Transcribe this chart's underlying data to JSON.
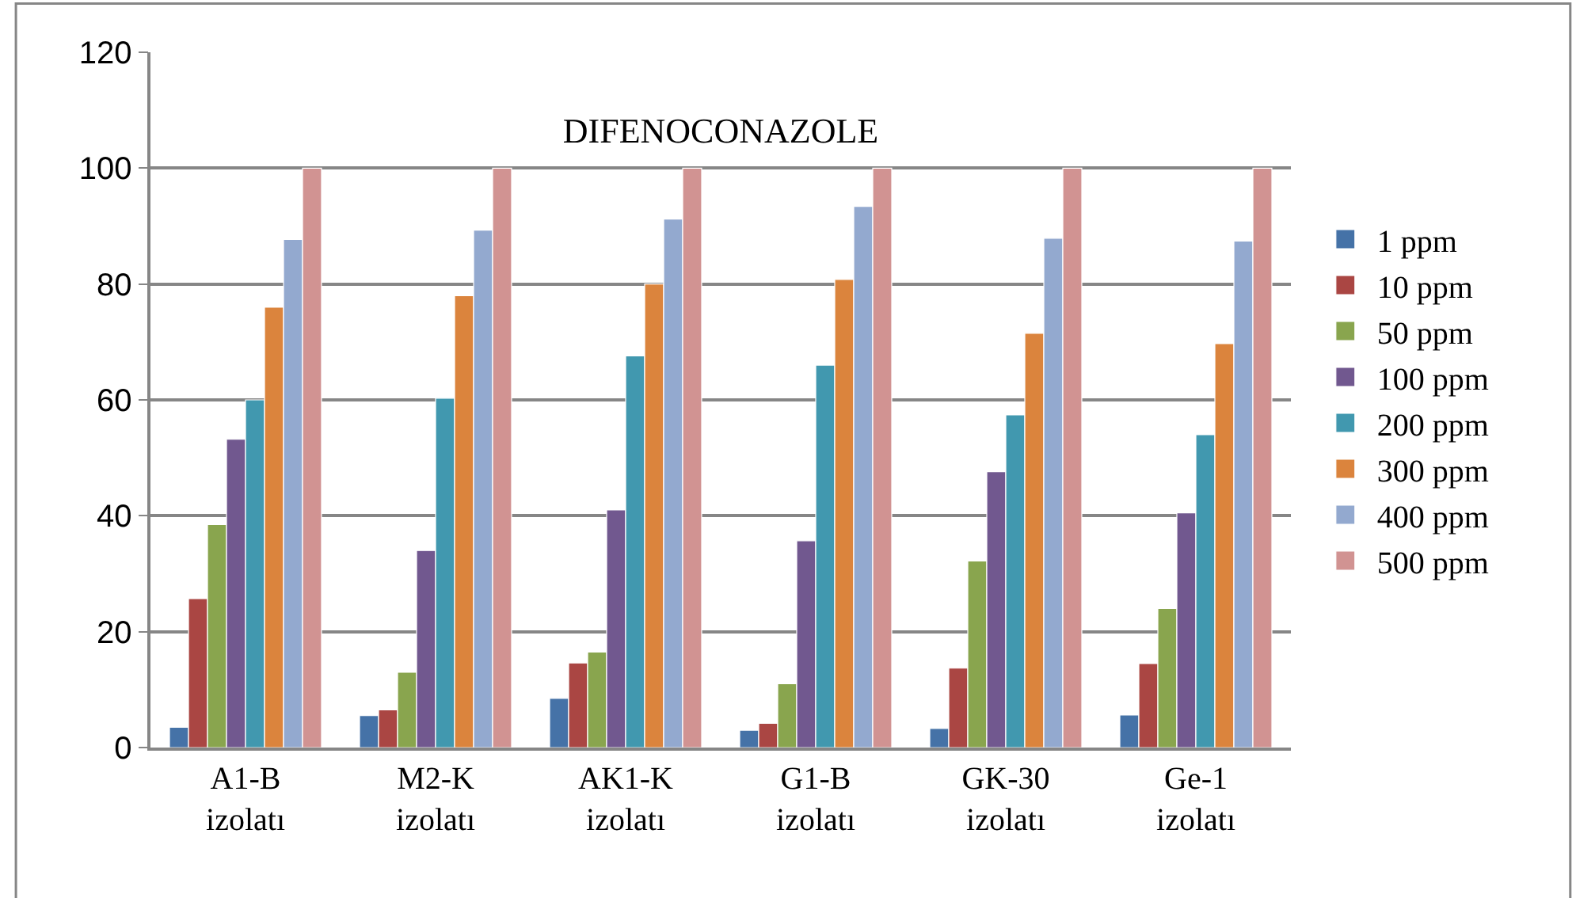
{
  "chart_data": {
    "type": "bar",
    "title": "DIFENOCONAZOLE",
    "categories": [
      "A1-B\nizolatı",
      "M2-K\nizolatı",
      "AK1-K\nizolatı",
      "G1-B\nizolatı",
      "GK-30\nizolatı",
      "Ge-1\nizolatı"
    ],
    "series": [
      {
        "name": "1 ppm",
        "color": "#4572a7",
        "values": [
          3.5,
          5.5,
          8.5,
          3,
          3.3,
          5.6
        ]
      },
      {
        "name": "10 ppm",
        "color": "#aa4643",
        "values": [
          25.7,
          6.5,
          14.6,
          4.2,
          13.7,
          14.5
        ]
      },
      {
        "name": "50 ppm",
        "color": "#89a54e",
        "values": [
          38.5,
          13,
          16.5,
          11,
          32.2,
          24
        ]
      },
      {
        "name": "100 ppm",
        "color": "#71588f",
        "values": [
          53.2,
          34,
          41,
          35.7,
          47.6,
          40.5
        ]
      },
      {
        "name": "200 ppm",
        "color": "#4198af",
        "values": [
          60,
          60.3,
          67.6,
          66,
          57.4,
          54
        ]
      },
      {
        "name": "300 ppm",
        "color": "#db843d",
        "values": [
          76,
          78,
          80,
          80.8,
          71.5,
          69.7
        ]
      },
      {
        "name": "400 ppm",
        "color": "#93a9cf",
        "values": [
          87.7,
          89.3,
          91.2,
          93.4,
          87.9,
          87.4
        ]
      },
      {
        "name": "500 ppm",
        "color": "#d19392",
        "values": [
          100,
          100,
          100,
          100,
          100,
          100
        ]
      }
    ],
    "ylim": [
      0,
      120
    ],
    "yticks": [
      0,
      20,
      40,
      60,
      80,
      100,
      120
    ],
    "grid": "y",
    "legend": "right"
  }
}
